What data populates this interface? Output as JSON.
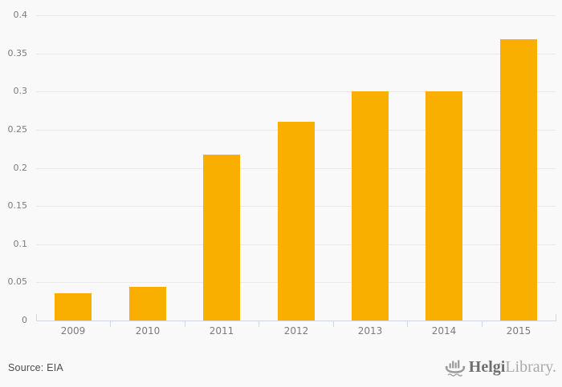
{
  "chart_data": {
    "type": "bar",
    "categories": [
      "2009",
      "2010",
      "2011",
      "2012",
      "2013",
      "2014",
      "2015"
    ],
    "values": [
      0.036,
      0.044,
      0.217,
      0.26,
      0.3,
      0.3,
      0.368
    ],
    "title": "",
    "xlabel": "",
    "ylabel": "",
    "ylim": [
      0,
      0.4
    ],
    "ytick_step": 0.05,
    "ytick_labels": [
      "0",
      "0.05",
      "0.1",
      "0.15",
      "0.2",
      "0.25",
      "0.3",
      "0.35",
      "0.4"
    ],
    "grid": "horizontal",
    "legend": "none",
    "bar_color": "#f9af00"
  },
  "colors": {
    "background": "#f9f9f9",
    "bar": "#f9af00",
    "gridline": "#e9e9e9",
    "axis": "#cfd7e6",
    "tick_label": "#7b7b7b",
    "source_text": "#4d4d4d",
    "logo_bold": "#6f6f6f",
    "logo_light": "#a9a9a9",
    "logo_icon": "#9a9a9a"
  },
  "footer": {
    "source": "Source: EIA",
    "logo_bold": "Helgi",
    "logo_light": "Library."
  }
}
